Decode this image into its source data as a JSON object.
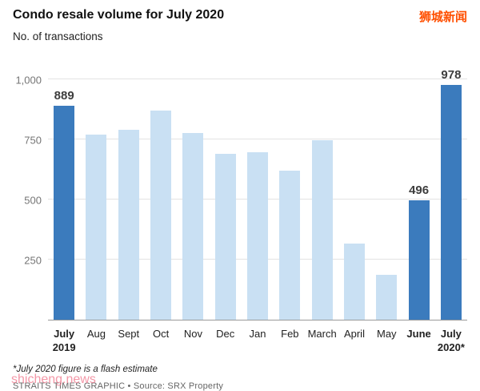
{
  "header": {
    "title": "Condo resale volume for July 2020",
    "subtitle": "No. of transactions",
    "watermark": "狮城新闻"
  },
  "footer": {
    "note": "*July 2020 figure is a flash estimate",
    "credit": "STRAITS TIMES GRAPHIC • Source: SRX Property",
    "watermark": "shicheng.news"
  },
  "colors": {
    "bar_highlight": "#3b7bbd",
    "bar_normal": "#c9e0f3",
    "watermark_top": "#ff4f00",
    "watermark_bottom": "#f27e92"
  },
  "chart_data": {
    "type": "bar",
    "title": "Condo resale volume for July 2020",
    "ylabel": "No. of transactions",
    "xlabel": "",
    "categories": [
      "July 2019",
      "Aug",
      "Sept",
      "Oct",
      "Nov",
      "Dec",
      "Jan",
      "Feb",
      "March",
      "April",
      "May",
      "June",
      "July 2020*"
    ],
    "values": [
      889,
      770,
      790,
      870,
      775,
      690,
      695,
      620,
      745,
      315,
      185,
      496,
      978
    ],
    "highlighted_indexes": [
      0,
      11,
      12
    ],
    "data_labels": {
      "0": "889",
      "11": "496",
      "12": "978"
    },
    "yticks": [
      250,
      500,
      750,
      1000
    ],
    "ylim": [
      0,
      1000
    ],
    "grid": "horizontal",
    "legend": "none"
  }
}
